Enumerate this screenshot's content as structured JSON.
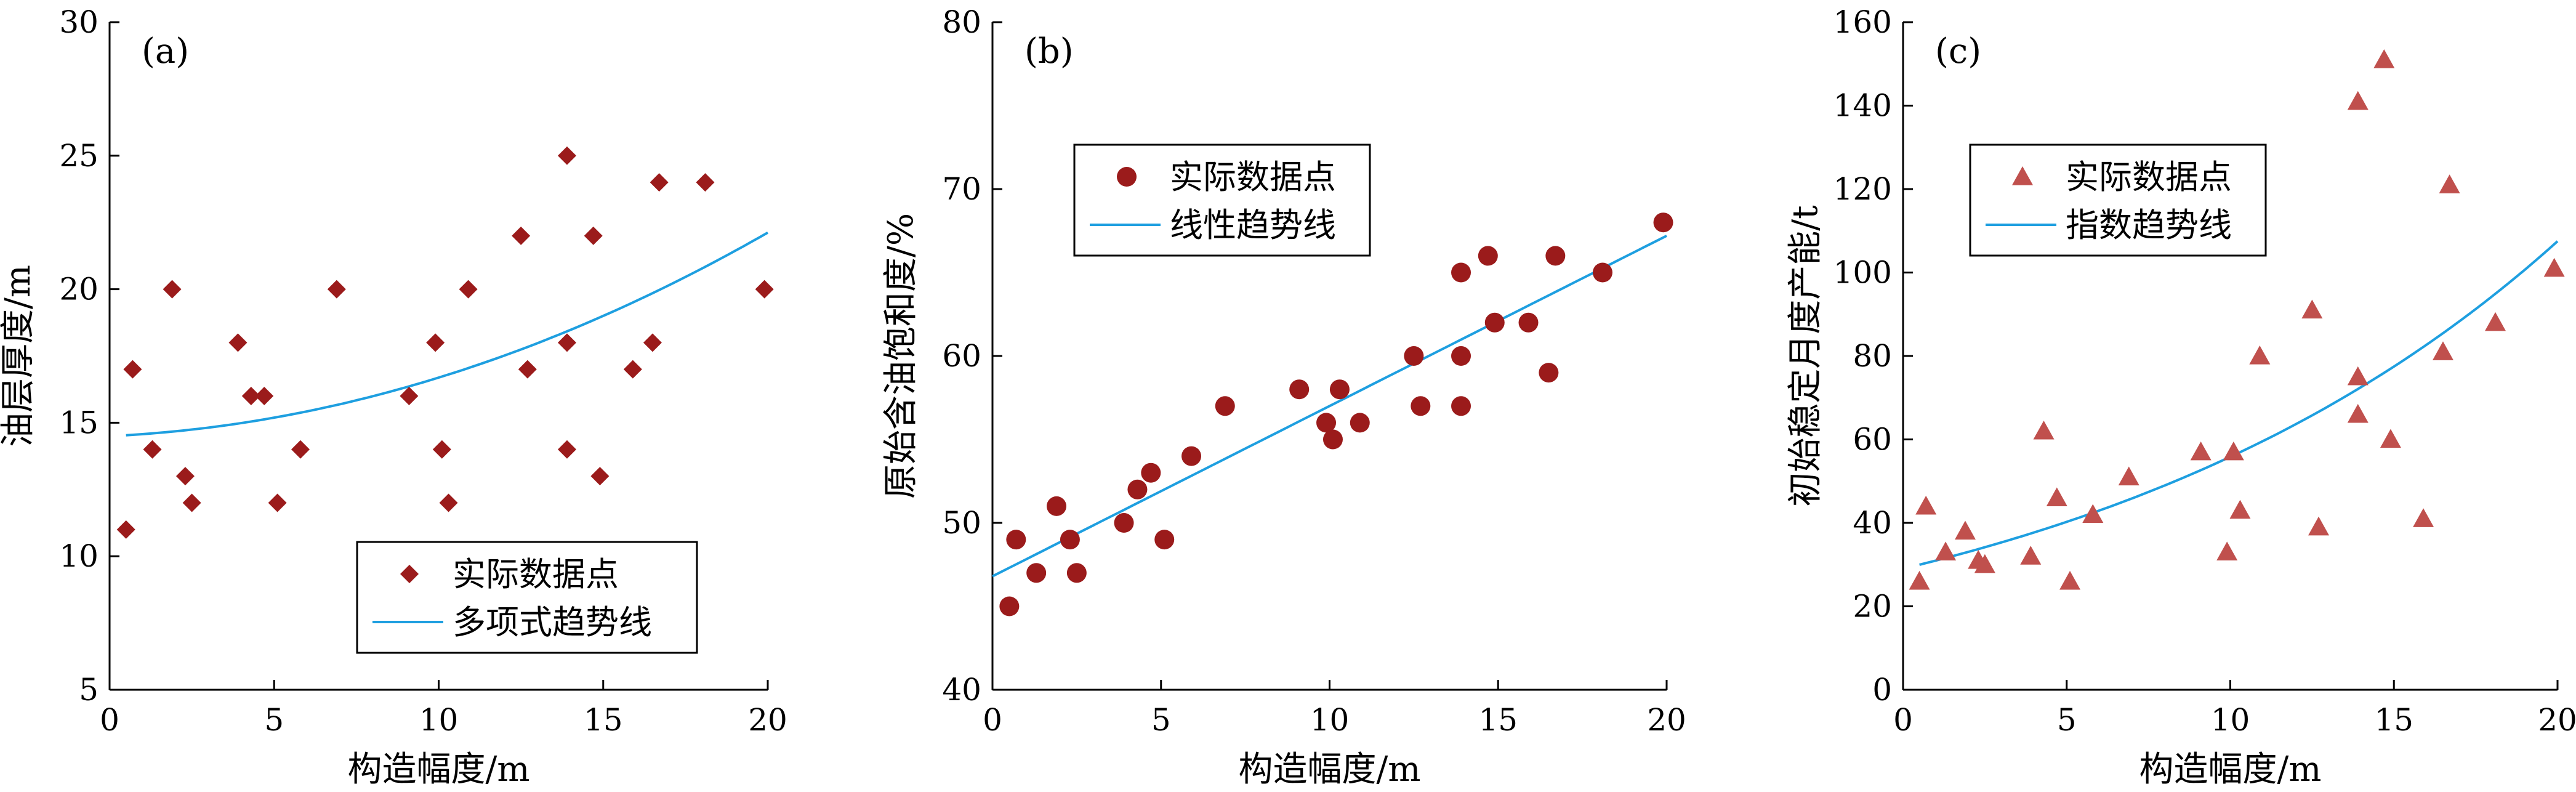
{
  "chart_data": [
    {
      "type": "scatter",
      "panel_label": "(a)",
      "xlabel": "构造幅度/m",
      "ylabel": "油层厚度/m",
      "xlim": [
        0,
        20
      ],
      "ylim": [
        5,
        30
      ],
      "xticks": [
        0,
        5,
        10,
        15,
        20
      ],
      "yticks": [
        5,
        10,
        15,
        20,
        25,
        30
      ],
      "marker": "diamond",
      "marker_color": "#9b1b1b",
      "trend_color": "#1e9fe0",
      "legend_position": "bottom-right",
      "series": [
        {
          "name": "实际数据点",
          "points": [
            [
              0.5,
              11
            ],
            [
              0.7,
              17
            ],
            [
              1.3,
              14
            ],
            [
              1.9,
              20
            ],
            [
              2.3,
              13
            ],
            [
              2.5,
              12
            ],
            [
              3.9,
              18
            ],
            [
              4.3,
              16
            ],
            [
              4.7,
              16
            ],
            [
              5.1,
              12
            ],
            [
              5.8,
              14
            ],
            [
              6.9,
              20
            ],
            [
              9.1,
              16
            ],
            [
              9.9,
              18
            ],
            [
              10.1,
              14
            ],
            [
              10.3,
              12
            ],
            [
              10.9,
              20
            ],
            [
              12.5,
              22
            ],
            [
              12.7,
              17
            ],
            [
              13.9,
              25
            ],
            [
              13.9,
              18
            ],
            [
              13.9,
              14
            ],
            [
              14.7,
              22
            ],
            [
              14.9,
              13
            ],
            [
              15.9,
              17
            ],
            [
              16.5,
              18
            ],
            [
              16.7,
              24
            ],
            [
              18.1,
              24
            ],
            [
              19.9,
              20
            ]
          ]
        },
        {
          "name": "多项式趋势线",
          "trend": {
            "kind": "polynomial",
            "x_range": [
              0.5,
              20
            ],
            "coefficients": [
              14.5,
              0.057,
              0.0162
            ]
          }
        }
      ]
    },
    {
      "type": "scatter",
      "panel_label": "(b)",
      "xlabel": "构造幅度/m",
      "ylabel": "原始含油饱和度/%",
      "xlim": [
        0,
        20
      ],
      "ylim": [
        40,
        80
      ],
      "xticks": [
        0,
        5,
        10,
        15,
        20
      ],
      "yticks": [
        40,
        50,
        60,
        70,
        80
      ],
      "marker": "circle",
      "marker_color": "#9b1b1b",
      "trend_color": "#1e9fe0",
      "legend_position": "top-left",
      "series": [
        {
          "name": "实际数据点",
          "points": [
            [
              0.5,
              45
            ],
            [
              0.7,
              49
            ],
            [
              1.3,
              47
            ],
            [
              1.9,
              51
            ],
            [
              2.3,
              49
            ],
            [
              2.5,
              47
            ],
            [
              3.9,
              50
            ],
            [
              4.3,
              52
            ],
            [
              4.7,
              53
            ],
            [
              5.1,
              49
            ],
            [
              5.9,
              54
            ],
            [
              6.9,
              57
            ],
            [
              9.1,
              58
            ],
            [
              9.9,
              56
            ],
            [
              10.1,
              55
            ],
            [
              10.3,
              58
            ],
            [
              10.9,
              56
            ],
            [
              12.5,
              60
            ],
            [
              12.7,
              57
            ],
            [
              13.9,
              65
            ],
            [
              13.9,
              60
            ],
            [
              13.9,
              57
            ],
            [
              14.7,
              66
            ],
            [
              14.9,
              62
            ],
            [
              15.9,
              62
            ],
            [
              16.5,
              59
            ],
            [
              16.7,
              66
            ],
            [
              18.1,
              65
            ],
            [
              19.9,
              68
            ]
          ]
        },
        {
          "name": "线性趋势线",
          "trend": {
            "kind": "linear",
            "x_range": [
              0,
              20
            ],
            "coefficients": [
              46.8,
              1.02
            ]
          }
        }
      ]
    },
    {
      "type": "scatter",
      "panel_label": "(c)",
      "xlabel": "构造幅度/m",
      "ylabel": "初始稳定月度产能/t",
      "xlim": [
        0,
        20
      ],
      "ylim": [
        0,
        160
      ],
      "xticks": [
        0,
        5,
        10,
        15,
        20
      ],
      "yticks": [
        0,
        20,
        40,
        60,
        80,
        100,
        120,
        140,
        160
      ],
      "marker": "triangle",
      "marker_color": "#c0504d",
      "trend_color": "#1e9fe0",
      "legend_position": "top-left",
      "series": [
        {
          "name": "实际数据点",
          "points": [
            [
              0.5,
              26
            ],
            [
              0.7,
              44
            ],
            [
              1.3,
              33
            ],
            [
              1.9,
              38
            ],
            [
              2.3,
              31
            ],
            [
              2.5,
              30
            ],
            [
              3.9,
              32
            ],
            [
              4.3,
              62
            ],
            [
              4.7,
              46
            ],
            [
              5.1,
              26
            ],
            [
              5.8,
              42
            ],
            [
              6.9,
              51
            ],
            [
              9.1,
              57
            ],
            [
              9.9,
              33
            ],
            [
              10.1,
              57
            ],
            [
              10.3,
              43
            ],
            [
              10.9,
              80
            ],
            [
              12.5,
              91
            ],
            [
              12.7,
              39
            ],
            [
              13.9,
              141
            ],
            [
              13.9,
              75
            ],
            [
              13.9,
              66
            ],
            [
              14.7,
              151
            ],
            [
              14.9,
              60
            ],
            [
              15.9,
              41
            ],
            [
              16.5,
              81
            ],
            [
              16.7,
              121
            ],
            [
              18.1,
              88
            ],
            [
              19.9,
              101
            ]
          ]
        },
        {
          "name": "指数趋势线",
          "trend": {
            "kind": "exponential",
            "x_range": [
              0.5,
              20
            ],
            "coefficients": [
              29.0,
              0.0655
            ]
          }
        }
      ]
    }
  ]
}
